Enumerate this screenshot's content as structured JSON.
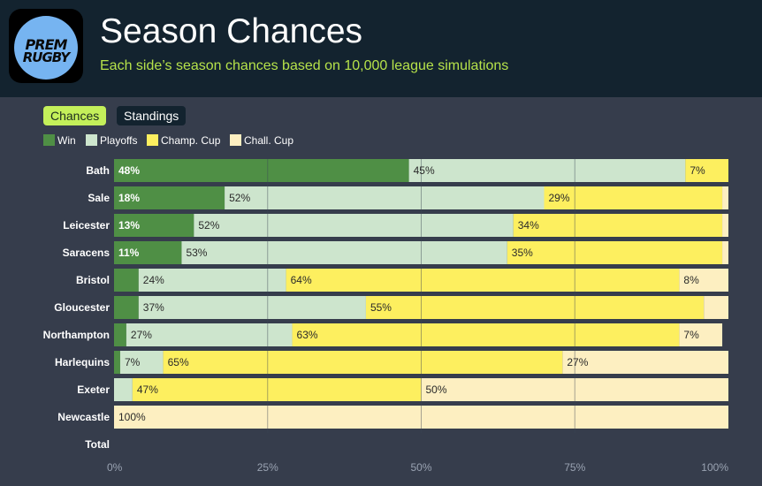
{
  "header": {
    "logo_line1": "PREM",
    "logo_line2": "RUGBY",
    "title": "Season Chances",
    "subtitle": "Each side’s season chances based on 10,000 league simulations"
  },
  "tabs": [
    {
      "label": "Chances",
      "active": true
    },
    {
      "label": "Standings",
      "active": false
    }
  ],
  "colors": {
    "win": "#4f8f45",
    "playoffs": "#cde5cd",
    "champ_cup": "#fdef5f",
    "chall_cup": "#fdefc1",
    "header_bg": "#13232f",
    "page_bg": "#363d4c",
    "accent": "#b6e24a"
  },
  "chart_data": {
    "type": "bar",
    "orientation": "horizontal",
    "stacked": true,
    "categories": [
      "Bath",
      "Sale",
      "Leicester",
      "Saracens",
      "Bristol",
      "Gloucester",
      "Northampton",
      "Harlequins",
      "Exeter",
      "Newcastle",
      "Total"
    ],
    "series": [
      {
        "name": "Win",
        "color": "#4f8f45",
        "values": [
          48,
          18,
          13,
          11,
          4,
          4,
          2,
          1,
          0,
          0,
          null
        ]
      },
      {
        "name": "Playoffs",
        "color": "#cde5cd",
        "values": [
          45,
          52,
          52,
          53,
          24,
          37,
          27,
          7,
          3,
          0,
          null
        ]
      },
      {
        "name": "Champ. Cup",
        "color": "#fdef5f",
        "values": [
          7,
          29,
          34,
          35,
          64,
          55,
          63,
          65,
          47,
          0,
          null
        ]
      },
      {
        "name": "Chall. Cup",
        "color": "#fdefc1",
        "values": [
          0,
          1,
          1,
          1,
          8,
          4,
          7,
          27,
          50,
          100,
          null
        ]
      }
    ],
    "labels": [
      [
        "48%",
        "45%",
        "7%",
        ""
      ],
      [
        "18%",
        "52%",
        "29%",
        ""
      ],
      [
        "13%",
        "52%",
        "34%",
        ""
      ],
      [
        "11%",
        "53%",
        "35%",
        ""
      ],
      [
        "",
        "24%",
        "64%",
        "8%"
      ],
      [
        "",
        "37%",
        "55%",
        ""
      ],
      [
        "",
        "27%",
        "63%",
        "7%"
      ],
      [
        "",
        "7%",
        "65%",
        "27%"
      ],
      [
        "",
        "",
        "47%",
        "50%"
      ],
      [
        "",
        "",
        "",
        "100%"
      ],
      [
        "",
        "",
        "",
        ""
      ]
    ],
    "xticks": [
      "0%",
      "25%",
      "50%",
      "75%",
      "100%"
    ],
    "xlim": [
      0,
      100
    ],
    "grid": true,
    "legend_position": "top-left"
  }
}
